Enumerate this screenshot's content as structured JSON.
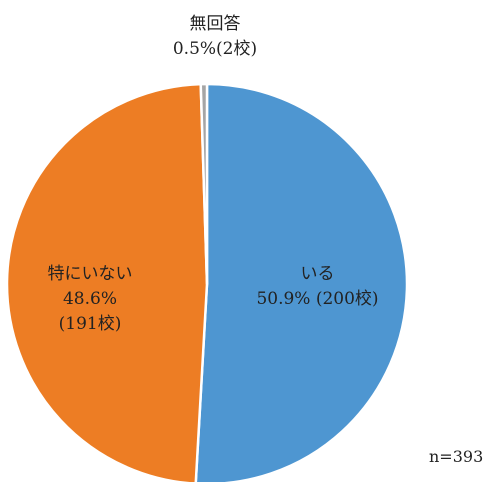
{
  "chart_data": {
    "type": "pie",
    "start": "top",
    "direction": "clockwise",
    "slices": [
      {
        "label": "いる",
        "percent": 50.9,
        "schools": 200,
        "display": "50.9% (200校)",
        "color": "#4e96d1"
      },
      {
        "label": "特にいない",
        "percent": 48.6,
        "schools": 191,
        "display_lines": [
          "48.6%",
          "(191校)"
        ],
        "color": "#ed7d24"
      },
      {
        "label": "無回答",
        "percent": 0.5,
        "schools": 2,
        "display": "0.5%(2校)",
        "color": "#a5a5a5"
      }
    ],
    "note": "n=393"
  }
}
